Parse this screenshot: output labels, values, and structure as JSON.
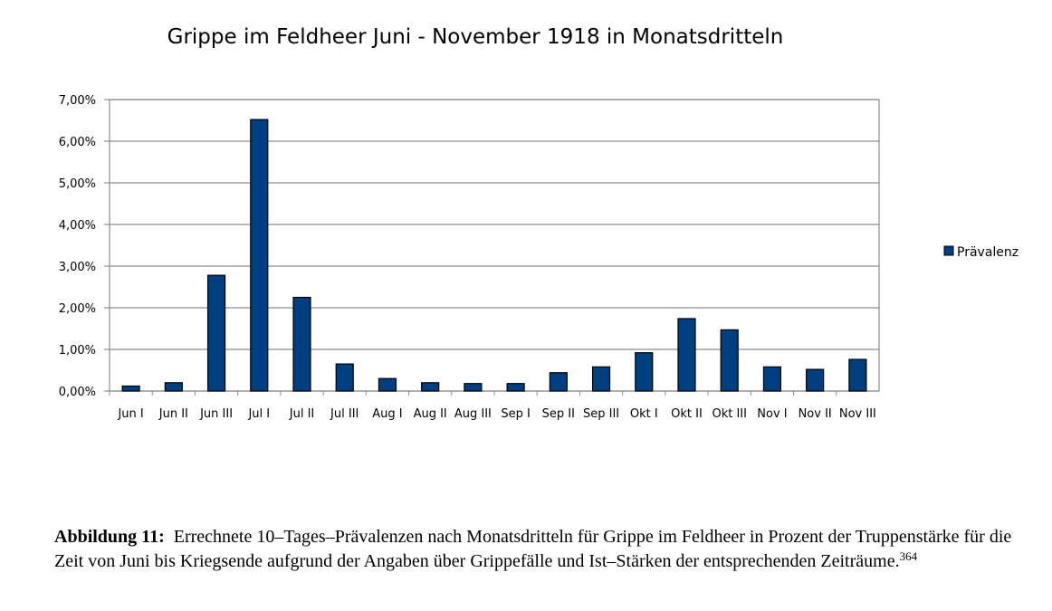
{
  "chart_data": {
    "type": "bar",
    "title": "Grippe im Feldheer Juni - November 1918 in Monatsdritteln",
    "categories": [
      "Jun I",
      "Jun II",
      "Jun III",
      "Jul I",
      "Jul II",
      "Jul III",
      "Aug I",
      "Aug II",
      "Aug III",
      "Sep I",
      "Sep II",
      "Sep III",
      "Okt I",
      "Okt II",
      "Okt III",
      "Nov I",
      "Nov II",
      "Nov III"
    ],
    "series": [
      {
        "name": "Prävalenz",
        "color": "#003f7f",
        "values": [
          0.12,
          0.2,
          2.78,
          6.52,
          2.25,
          0.65,
          0.3,
          0.2,
          0.18,
          0.18,
          0.44,
          0.58,
          0.92,
          1.74,
          1.47,
          0.58,
          0.52,
          0.76
        ]
      }
    ],
    "yticks": [
      "0,00%",
      "1,00%",
      "2,00%",
      "3,00%",
      "4,00%",
      "5,00%",
      "6,00%",
      "7,00%"
    ],
    "ylim": [
      0,
      7
    ],
    "grid": true,
    "legend_position": "right"
  },
  "caption": {
    "lead": "Abbildung 11:",
    "text": "Errechnete 10–Tages–Prävalenzen nach Monatsdritteln für Grippe im Feldheer in Prozent der Truppenstärke für die Zeit von Juni bis Kriegsende aufgrund der Angaben über Grippefälle und Ist–Stärken der entsprechenden Zeiträume.",
    "footnote": "364"
  }
}
